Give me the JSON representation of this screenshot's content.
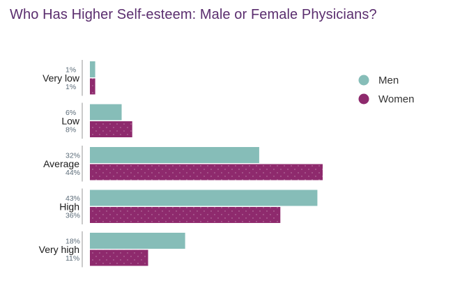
{
  "chart_data": {
    "type": "bar",
    "orientation": "horizontal",
    "title": "Who Has Higher Self-esteem: Male or Female Physicians?",
    "xlabel": "",
    "ylabel": "",
    "categories": [
      "Very low",
      "Low",
      "Average",
      "High",
      "Very high"
    ],
    "series": [
      {
        "name": "Men",
        "values": [
          1,
          6,
          32,
          43,
          18
        ],
        "labels": [
          "1%",
          "6%",
          "32%",
          "43%",
          "18%"
        ],
        "color": "#86bdb8"
      },
      {
        "name": "Women",
        "values": [
          1,
          8,
          44,
          36,
          11
        ],
        "labels": [
          "1%",
          "8%",
          "44%",
          "36%",
          "11%"
        ],
        "color": "#8e2a6d"
      }
    ],
    "xlim": [
      0,
      44
    ],
    "grid": false,
    "legend_position": "right",
    "text_color": "#1a1a1a",
    "label_color": "#5b6b78"
  }
}
